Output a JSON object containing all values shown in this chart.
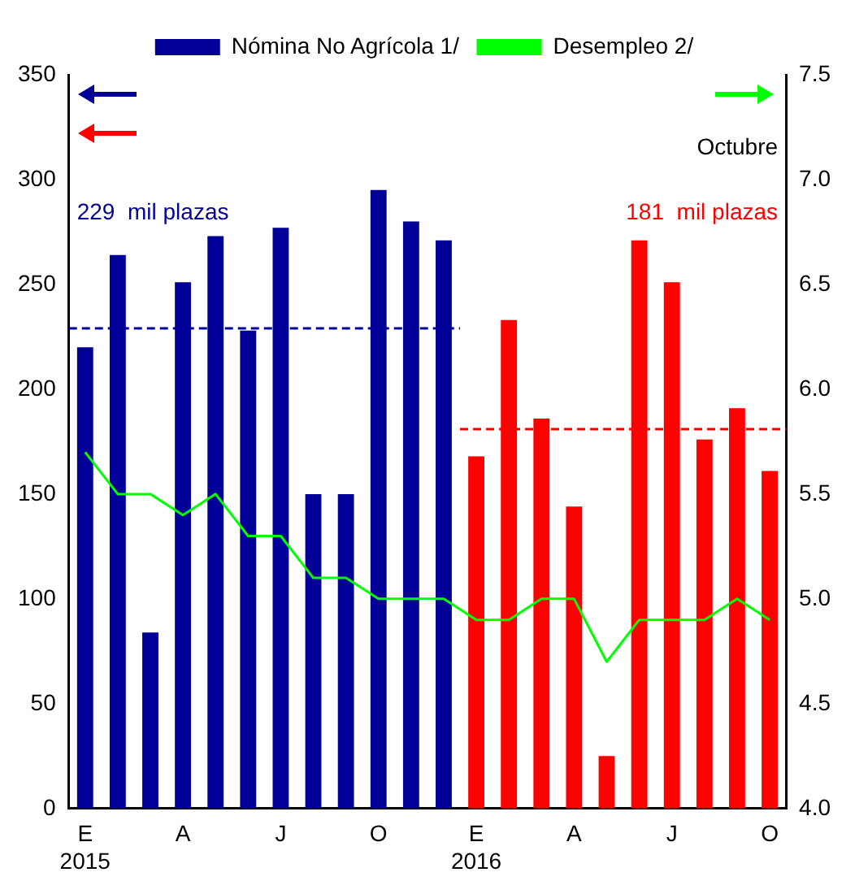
{
  "chart_data": {
    "type": "bar",
    "categories": [
      "E\n2015",
      null,
      null,
      "A",
      null,
      null,
      "J",
      null,
      null,
      "O",
      null,
      null,
      "E\n2016",
      null,
      null,
      "A",
      null,
      null,
      "J",
      null,
      null,
      "O"
    ],
    "series": [
      {
        "name": "Nómina No Agrícola 1/",
        "color": "#000099",
        "colors": [
          "#000099",
          "#000099",
          "#000099",
          "#000099",
          "#000099",
          "#000099",
          "#000099",
          "#000099",
          "#000099",
          "#000099",
          "#000099",
          "#000099",
          "#ff0000",
          "#ff0000",
          "#ff0000",
          "#ff0000",
          "#ff0000",
          "#ff0000",
          "#ff0000",
          "#ff0000",
          "#ff0000",
          "#ff0000"
        ],
        "values": [
          220,
          264,
          84,
          251,
          273,
          228,
          277,
          150,
          150,
          295,
          280,
          271,
          168,
          233,
          186,
          144,
          25,
          271,
          251,
          176,
          191,
          161
        ]
      },
      {
        "name": "Desempleo 2/",
        "type": "line",
        "axis": "y2",
        "color": "#00ff00",
        "values": [
          5.7,
          5.5,
          5.5,
          5.4,
          5.5,
          5.3,
          5.3,
          5.1,
          5.1,
          5.0,
          5.0,
          5.0,
          4.9,
          4.9,
          5.0,
          5.0,
          4.7,
          4.9,
          4.9,
          4.9,
          5.0,
          4.9
        ]
      }
    ],
    "ylim": [
      0,
      350
    ],
    "yticks": [
      0,
      50,
      100,
      150,
      200,
      250,
      300,
      350
    ],
    "y2lim": [
      4,
      7.5
    ],
    "y2ticks": [
      {
        "value": 4,
        "label": "4.0"
      },
      {
        "value": 4.5,
        "label": "4.5"
      },
      {
        "value": 5,
        "label": "5.0"
      },
      {
        "value": 5.5,
        "label": "5.5"
      },
      {
        "value": 6,
        "label": "6.0"
      },
      {
        "value": 6.5,
        "label": "6.5"
      },
      {
        "value": 7,
        "label": "7.0"
      },
      {
        "value": 7.5,
        "label": "7.5"
      }
    ],
    "ref_lines": [
      {
        "axis": "y",
        "value": 229,
        "label": "229  mil plazas",
        "color": "#000099",
        "line_style": "dashed"
      },
      {
        "axis": "y",
        "value": 181,
        "label": "181  mil plazas",
        "color": "#ff0000",
        "line_style": "dashed"
      }
    ],
    "annotations": [
      "Octubre"
    ],
    "legend": "top",
    "grid": false,
    "marker": "none",
    "line_style": "solid"
  }
}
